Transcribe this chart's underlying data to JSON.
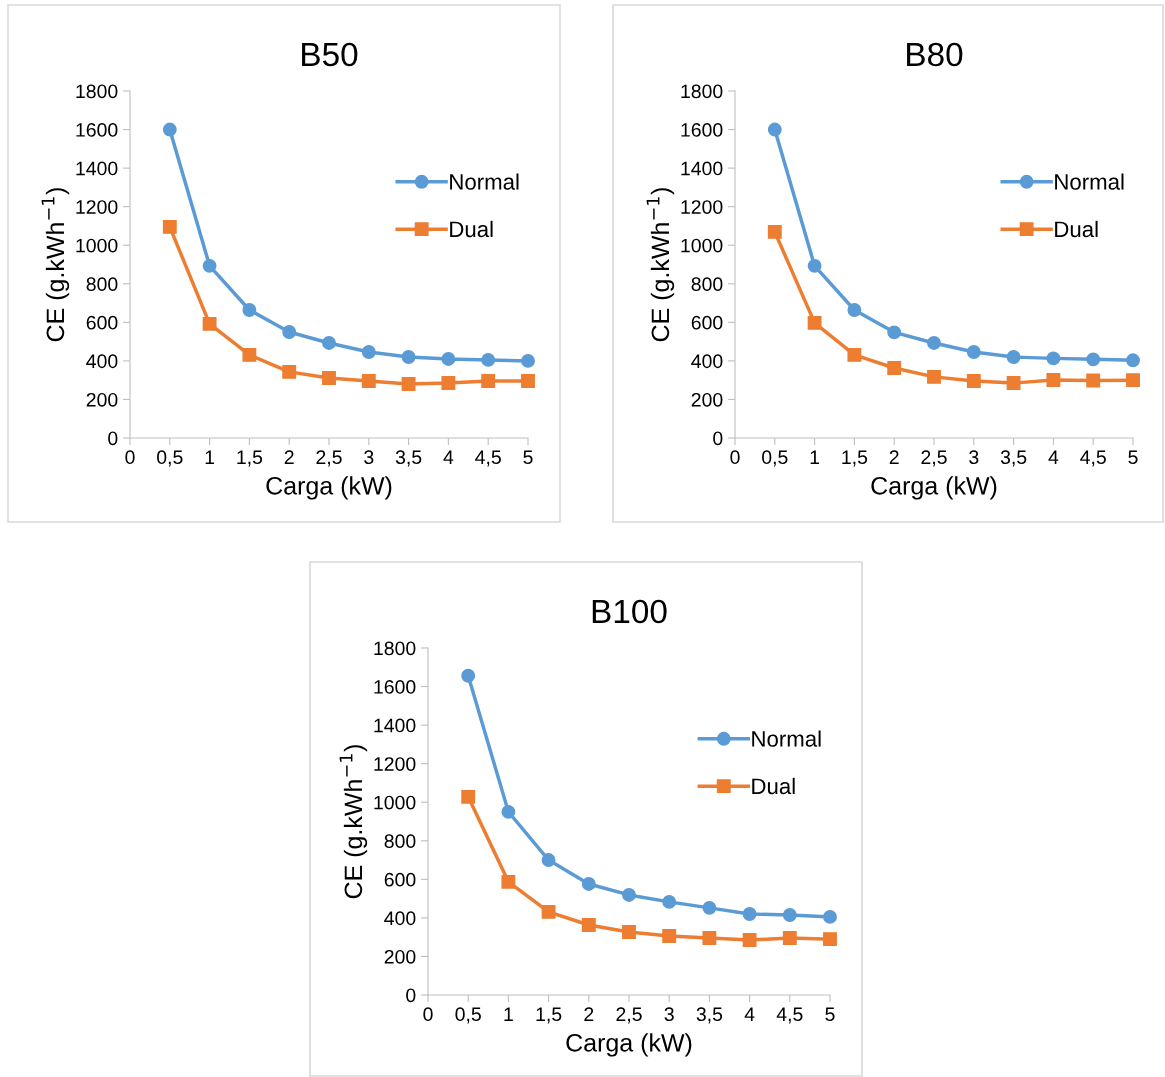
{
  "chart_data": [
    {
      "type": "line",
      "title": "B50",
      "xlabel": "Carga (kW)",
      "ylabel": "CE (g.kWh$^{−1}$)",
      "x": [
        0.5,
        1,
        1.5,
        2,
        2.5,
        3,
        3.5,
        4,
        4.5,
        5
      ],
      "xlim": [
        0,
        5
      ],
      "xticks": [
        0,
        {
          "value": 0.5,
          "label": "0,5"
        },
        1,
        {
          "value": 1.5,
          "label": "1,5"
        },
        2,
        {
          "value": 2.5,
          "label": "2,5"
        },
        3,
        {
          "value": 3.5,
          "label": "3,5"
        },
        4,
        {
          "value": 4.5,
          "label": "4,5"
        },
        5
      ],
      "ylim": [
        0,
        1800
      ],
      "yticks": [
        0,
        200,
        400,
        600,
        800,
        1000,
        1200,
        1400,
        1600,
        1800
      ],
      "grid": false,
      "legend": "top right",
      "series": [
        {
          "name": "Normal",
          "color": "#5b9bd5",
          "marker": "circle",
          "values": [
            1600,
            893,
            664,
            550,
            493,
            446,
            420,
            410,
            405,
            400
          ]
        },
        {
          "name": "Dual",
          "color": "#ed7d31",
          "marker": "square",
          "values": [
            1095,
            592,
            431,
            343,
            311,
            296,
            280,
            285,
            296,
            296
          ]
        }
      ]
    },
    {
      "type": "line",
      "title": "B80",
      "xlabel": "Carga (kW)",
      "ylabel": "CE (g.kWh$^{−1}$)",
      "x": [
        0.5,
        1,
        1.5,
        2,
        2.5,
        3,
        3.5,
        4,
        4.5,
        5
      ],
      "xlim": [
        0,
        5
      ],
      "xticks": [
        0,
        {
          "value": 0.5,
          "label": "0,5"
        },
        1,
        {
          "value": 1.5,
          "label": "1,5"
        },
        2,
        {
          "value": 2.5,
          "label": "2,5"
        },
        3,
        {
          "value": 3.5,
          "label": "3,5"
        },
        4,
        {
          "value": 4.5,
          "label": "4,5"
        },
        5
      ],
      "ylim": [
        0,
        1800
      ],
      "yticks": [
        0,
        200,
        400,
        600,
        800,
        1000,
        1200,
        1400,
        1600,
        1800
      ],
      "grid": false,
      "legend": "top right",
      "series": [
        {
          "name": "Normal",
          "color": "#5b9bd5",
          "marker": "circle",
          "values": [
            1600,
            893,
            664,
            548,
            493,
            446,
            420,
            413,
            408,
            403
          ]
        },
        {
          "name": "Dual",
          "color": "#ed7d31",
          "marker": "square",
          "values": [
            1069,
            597,
            431,
            363,
            317,
            296,
            285,
            301,
            298,
            300
          ]
        }
      ]
    },
    {
      "type": "line",
      "title": "B100",
      "xlabel": "Carga (kW)",
      "ylabel": "CE (g.kWh$^{−1}$)",
      "x": [
        0.5,
        1,
        1.5,
        2,
        2.5,
        3,
        3.5,
        4,
        4.5,
        5
      ],
      "xlim": [
        0,
        5
      ],
      "xticks": [
        0,
        {
          "value": 0.5,
          "label": "0,5"
        },
        1,
        {
          "value": 1.5,
          "label": "1,5"
        },
        2,
        {
          "value": 2.5,
          "label": "2,5"
        },
        3,
        {
          "value": 3.5,
          "label": "3,5"
        },
        4,
        {
          "value": 4.5,
          "label": "4,5"
        },
        5
      ],
      "ylim": [
        0,
        1800
      ],
      "yticks": [
        0,
        200,
        400,
        600,
        800,
        1000,
        1200,
        1400,
        1600,
        1800
      ],
      "grid": false,
      "legend": "top right",
      "series": [
        {
          "name": "Normal",
          "color": "#5b9bd5",
          "marker": "circle",
          "values": [
            1656,
            950,
            700,
            576,
            519,
            483,
            452,
            420,
            415,
            405
          ]
        },
        {
          "name": "Dual",
          "color": "#ed7d31",
          "marker": "square",
          "values": [
            1028,
            587,
            431,
            363,
            327,
            306,
            296,
            285,
            296,
            290
          ]
        }
      ]
    }
  ]
}
